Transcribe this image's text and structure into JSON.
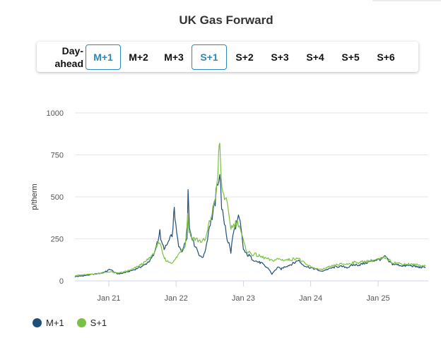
{
  "title": "UK Gas Forward",
  "tabs": [
    {
      "label1": "Day-",
      "label2": "ahead",
      "active": false
    },
    {
      "label": "M+1",
      "active": true
    },
    {
      "label": "M+2",
      "active": false
    },
    {
      "label": "M+3",
      "active": false
    },
    {
      "label": "S+1",
      "active": true
    },
    {
      "label": "S+2",
      "active": false
    },
    {
      "label": "S+3",
      "active": false
    },
    {
      "label": "S+4",
      "active": false
    },
    {
      "label": "S+5",
      "active": false
    },
    {
      "label": "S+6",
      "active": false
    }
  ],
  "colors": {
    "m1": "#1f4e79",
    "s1": "#7ac143",
    "active_tab": "#2a88bd",
    "grid": "#e6e6e6"
  },
  "chart_data": {
    "type": "line",
    "ylabel": "p/therm",
    "ylim": [
      0,
      1000
    ],
    "yticks": [
      0,
      250,
      500,
      750,
      1000
    ],
    "xlim": [
      "2020-07-01",
      "2025-09-30"
    ],
    "xticks": [
      {
        "date": "2021-01-01",
        "label": "Jan 21"
      },
      {
        "date": "2022-01-01",
        "label": "Jan 22"
      },
      {
        "date": "2023-01-01",
        "label": "Jan 23"
      },
      {
        "date": "2024-01-01",
        "label": "Jan 24"
      },
      {
        "date": "2025-01-01",
        "label": "Jan 25"
      }
    ],
    "grid": true,
    "legend_position": "bottom-left",
    "series": [
      {
        "name": "M+1",
        "points": [
          [
            "2020-07-01",
            25
          ],
          [
            "2020-08-15",
            30
          ],
          [
            "2020-10-01",
            38
          ],
          [
            "2020-11-15",
            45
          ],
          [
            "2020-12-15",
            55
          ],
          [
            "2021-01-10",
            70
          ],
          [
            "2021-01-25",
            55
          ],
          [
            "2021-02-15",
            42
          ],
          [
            "2021-03-15",
            45
          ],
          [
            "2021-04-15",
            55
          ],
          [
            "2021-05-15",
            65
          ],
          [
            "2021-06-15",
            80
          ],
          [
            "2021-07-15",
            95
          ],
          [
            "2021-08-15",
            125
          ],
          [
            "2021-09-05",
            160
          ],
          [
            "2021-09-20",
            230
          ],
          [
            "2021-10-05",
            290
          ],
          [
            "2021-10-15",
            220
          ],
          [
            "2021-11-01",
            190
          ],
          [
            "2021-11-20",
            230
          ],
          [
            "2021-12-05",
            260
          ],
          [
            "2021-12-15",
            300
          ],
          [
            "2021-12-22",
            450
          ],
          [
            "2021-12-30",
            320
          ],
          [
            "2022-01-15",
            200
          ],
          [
            "2022-02-01",
            180
          ],
          [
            "2022-02-15",
            210
          ],
          [
            "2022-03-01",
            270
          ],
          [
            "2022-03-07",
            540
          ],
          [
            "2022-03-14",
            320
          ],
          [
            "2022-03-25",
            280
          ],
          [
            "2022-04-05",
            230
          ],
          [
            "2022-04-20",
            200
          ],
          [
            "2022-05-01",
            170
          ],
          [
            "2022-05-15",
            140
          ],
          [
            "2022-06-01",
            150
          ],
          [
            "2022-06-15",
            220
          ],
          [
            "2022-07-01",
            330
          ],
          [
            "2022-07-15",
            380
          ],
          [
            "2022-08-01",
            470
          ],
          [
            "2022-08-15",
            600
          ],
          [
            "2022-08-26",
            640
          ],
          [
            "2022-09-05",
            450
          ],
          [
            "2022-09-15",
            360
          ],
          [
            "2022-09-25",
            330
          ],
          [
            "2022-10-05",
            250
          ],
          [
            "2022-10-15",
            220
          ],
          [
            "2022-10-25",
            170
          ],
          [
            "2022-11-05",
            270
          ],
          [
            "2022-11-20",
            330
          ],
          [
            "2022-12-05",
            370
          ],
          [
            "2022-12-15",
            340
          ],
          [
            "2023-01-01",
            190
          ],
          [
            "2023-01-15",
            160
          ],
          [
            "2023-02-01",
            150
          ],
          [
            "2023-02-20",
            130
          ],
          [
            "2023-03-15",
            115
          ],
          [
            "2023-04-10",
            105
          ],
          [
            "2023-05-01",
            85
          ],
          [
            "2023-05-20",
            70
          ],
          [
            "2023-06-05",
            40
          ],
          [
            "2023-06-20",
            60
          ],
          [
            "2023-07-05",
            80
          ],
          [
            "2023-07-25",
            70
          ],
          [
            "2023-08-15",
            85
          ],
          [
            "2023-09-10",
            95
          ],
          [
            "2023-10-10",
            110
          ],
          [
            "2023-10-25",
            125
          ],
          [
            "2023-11-15",
            100
          ],
          [
            "2023-12-10",
            85
          ],
          [
            "2024-01-10",
            75
          ],
          [
            "2024-02-10",
            65
          ],
          [
            "2024-02-25",
            55
          ],
          [
            "2024-03-20",
            65
          ],
          [
            "2024-04-20",
            75
          ],
          [
            "2024-05-20",
            85
          ],
          [
            "2024-06-20",
            85
          ],
          [
            "2024-07-20",
            80
          ],
          [
            "2024-08-20",
            95
          ],
          [
            "2024-09-20",
            95
          ],
          [
            "2024-10-20",
            105
          ],
          [
            "2024-11-20",
            115
          ],
          [
            "2024-12-20",
            125
          ],
          [
            "2025-01-20",
            130
          ],
          [
            "2025-02-10",
            145
          ],
          [
            "2025-02-28",
            115
          ],
          [
            "2025-03-20",
            100
          ],
          [
            "2025-04-20",
            95
          ],
          [
            "2025-05-20",
            88
          ],
          [
            "2025-06-20",
            92
          ],
          [
            "2025-07-20",
            85
          ],
          [
            "2025-08-20",
            80
          ],
          [
            "2025-09-15",
            80
          ]
        ]
      },
      {
        "name": "S+1",
        "points": [
          [
            "2020-07-01",
            32
          ],
          [
            "2020-08-15",
            35
          ],
          [
            "2020-10-01",
            40
          ],
          [
            "2020-11-15",
            45
          ],
          [
            "2020-12-15",
            50
          ],
          [
            "2021-01-10",
            55
          ],
          [
            "2021-02-10",
            48
          ],
          [
            "2021-03-15",
            50
          ],
          [
            "2021-04-15",
            60
          ],
          [
            "2021-05-15",
            72
          ],
          [
            "2021-06-15",
            90
          ],
          [
            "2021-07-15",
            110
          ],
          [
            "2021-08-15",
            140
          ],
          [
            "2021-09-10",
            180
          ],
          [
            "2021-09-25",
            240
          ],
          [
            "2021-10-10",
            200
          ],
          [
            "2021-10-25",
            140
          ],
          [
            "2021-11-15",
            115
          ],
          [
            "2021-12-05",
            110
          ],
          [
            "2021-12-20",
            115
          ],
          [
            "2022-01-10",
            150
          ],
          [
            "2022-02-01",
            190
          ],
          [
            "2022-02-20",
            215
          ],
          [
            "2022-03-05",
            400
          ],
          [
            "2022-03-12",
            300
          ],
          [
            "2022-03-25",
            260
          ],
          [
            "2022-04-15",
            250
          ],
          [
            "2022-05-05",
            240
          ],
          [
            "2022-05-25",
            235
          ],
          [
            "2022-06-10",
            245
          ],
          [
            "2022-06-25",
            320
          ],
          [
            "2022-07-10",
            380
          ],
          [
            "2022-07-25",
            450
          ],
          [
            "2022-08-10",
            560
          ],
          [
            "2022-08-20",
            730
          ],
          [
            "2022-08-26",
            830
          ],
          [
            "2022-09-01",
            620
          ],
          [
            "2022-09-12",
            520
          ],
          [
            "2022-09-25",
            500
          ],
          [
            "2022-10-10",
            410
          ],
          [
            "2022-10-25",
            320
          ],
          [
            "2022-11-10",
            330
          ],
          [
            "2022-11-25",
            350
          ],
          [
            "2022-12-10",
            340
          ],
          [
            "2022-12-25",
            260
          ],
          [
            "2023-01-10",
            200
          ],
          [
            "2023-01-25",
            175
          ],
          [
            "2023-02-15",
            160
          ],
          [
            "2023-03-10",
            155
          ],
          [
            "2023-04-01",
            145
          ],
          [
            "2023-05-01",
            135
          ],
          [
            "2023-06-01",
            120
          ],
          [
            "2023-06-20",
            125
          ],
          [
            "2023-07-10",
            130
          ],
          [
            "2023-08-01",
            125
          ],
          [
            "2023-09-01",
            125
          ],
          [
            "2023-10-01",
            130
          ],
          [
            "2023-10-20",
            140
          ],
          [
            "2023-11-15",
            115
          ],
          [
            "2023-12-10",
            95
          ],
          [
            "2024-01-10",
            80
          ],
          [
            "2024-02-10",
            70
          ],
          [
            "2024-02-25",
            65
          ],
          [
            "2024-03-20",
            75
          ],
          [
            "2024-04-20",
            85
          ],
          [
            "2024-05-20",
            95
          ],
          [
            "2024-06-20",
            100
          ],
          [
            "2024-07-20",
            100
          ],
          [
            "2024-08-20",
            110
          ],
          [
            "2024-09-20",
            110
          ],
          [
            "2024-10-20",
            115
          ],
          [
            "2024-11-20",
            120
          ],
          [
            "2024-12-20",
            125
          ],
          [
            "2025-01-20",
            130
          ],
          [
            "2025-02-10",
            140
          ],
          [
            "2025-02-28",
            125
          ],
          [
            "2025-03-20",
            110
          ],
          [
            "2025-04-20",
            105
          ],
          [
            "2025-05-20",
            100
          ],
          [
            "2025-06-20",
            100
          ],
          [
            "2025-07-20",
            95
          ],
          [
            "2025-08-20",
            92
          ],
          [
            "2025-09-15",
            90
          ]
        ]
      }
    ]
  }
}
